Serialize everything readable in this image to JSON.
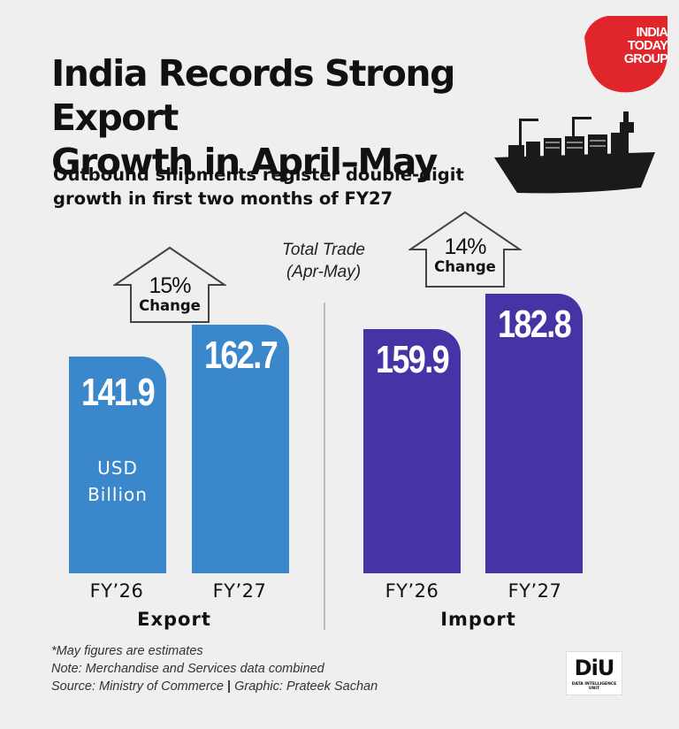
{
  "header": {
    "title_line1": "India Records Strong Export",
    "title_line2": "Growth in April–May",
    "subtitle_line1": "Outbound shipments register double-digit",
    "subtitle_line2": "growth in first two months of FY27"
  },
  "logos": {
    "publisher_line1": "INDIA",
    "publisher_line2": "TODAY",
    "publisher_line3": "GROUP",
    "unit_badge": "DiU",
    "unit_badge_sub": "DATA INTELLIGENCE UNIT"
  },
  "colors": {
    "export": "#3a87cb",
    "import": "#4633a6",
    "brand_red": "#e0252b"
  },
  "chart_data": {
    "type": "bar",
    "center_label_line1": "Total Trade",
    "center_label_line2": "(Apr-May)",
    "unit_line1": "USD",
    "unit_line2": "Billion",
    "ylim": [
      0,
      200
    ],
    "groups": [
      {
        "name": "Export",
        "change_pct": "15%",
        "change_label": "Change",
        "categories": [
          "FY’26",
          "FY’27"
        ],
        "values": [
          141.9,
          162.7
        ]
      },
      {
        "name": "Import",
        "change_pct": "14%",
        "change_label": "Change",
        "categories": [
          "FY’26",
          "FY’27"
        ],
        "values": [
          159.9,
          182.8
        ]
      }
    ]
  },
  "notes": {
    "line1": "*May figures are estimates",
    "line2": "Note: Merchandise and Services data combined",
    "line3_source": "Source: Ministry of Commerce",
    "line3_graphic": "Graphic: Prateek Sachan"
  }
}
